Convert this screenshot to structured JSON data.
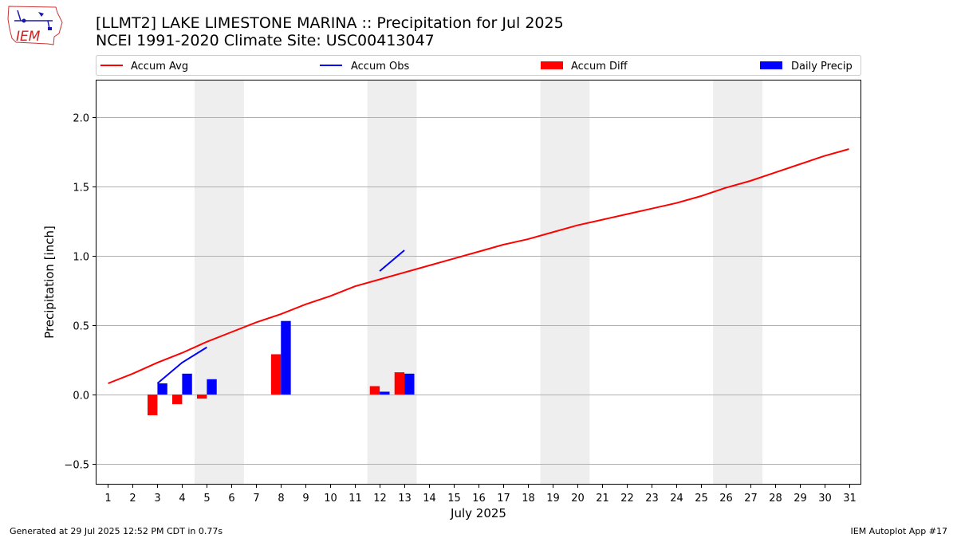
{
  "header": {
    "title_line1": "[LLMT2] LAKE LIMESTONE MARINA :: Precipitation for Jul 2025",
    "title_line2": "NCEI 1991-2020 Climate Site: USC00413047",
    "logo_text": "IEM"
  },
  "footer": {
    "generated": "Generated at 29 Jul 2025 12:52 PM CDT in 0.77s",
    "app": "IEM Autoplot App #17"
  },
  "chart_data": {
    "type": "bar",
    "xlabel": "July 2025",
    "ylabel": "Precipitation [inch]",
    "ylim": [
      -0.65,
      2.27
    ],
    "xlim": [
      0.5,
      31.5
    ],
    "yticks": [
      -0.5,
      0.0,
      0.5,
      1.0,
      1.5,
      2.0
    ],
    "ytick_labels": [
      "−0.5",
      "0.0",
      "0.5",
      "1.0",
      "1.5",
      "2.0"
    ],
    "days": [
      1,
      2,
      3,
      4,
      5,
      6,
      7,
      8,
      9,
      10,
      11,
      12,
      13,
      14,
      15,
      16,
      17,
      18,
      19,
      20,
      21,
      22,
      23,
      24,
      25,
      26,
      27,
      28,
      29,
      30,
      31
    ],
    "grid": "horizontal",
    "weekend_shading": [
      [
        5,
        6
      ],
      [
        12,
        13
      ],
      [
        19,
        20
      ],
      [
        26,
        27
      ]
    ],
    "legend_placement": "top, outside",
    "legend": [
      {
        "label": "Accum Avg",
        "kind": "line",
        "color": "#ff0000"
      },
      {
        "label": "Accum Obs",
        "kind": "line",
        "color": "#0000ff"
      },
      {
        "label": "Accum Diff",
        "kind": "bar",
        "color": "#ff0000"
      },
      {
        "label": "Daily Precip",
        "kind": "bar",
        "color": "#0000ff"
      }
    ],
    "series": [
      {
        "name": "Accum Avg",
        "kind": "line",
        "color": "#ff0000",
        "x": [
          1,
          2,
          3,
          4,
          5,
          6,
          7,
          8,
          9,
          10,
          11,
          12,
          13,
          14,
          15,
          16,
          17,
          18,
          19,
          20,
          21,
          22,
          23,
          24,
          25,
          26,
          27,
          28,
          29,
          30,
          31
        ],
        "values": [
          0.08,
          0.15,
          0.23,
          0.3,
          0.38,
          0.45,
          0.52,
          0.58,
          0.65,
          0.71,
          0.78,
          0.83,
          0.88,
          0.93,
          0.98,
          1.03,
          1.08,
          1.12,
          1.17,
          1.22,
          1.26,
          1.3,
          1.34,
          1.38,
          1.43,
          1.49,
          1.54,
          1.6,
          1.66,
          1.72,
          1.77
        ]
      },
      {
        "name": "Accum Obs",
        "kind": "line",
        "color": "#0000ff",
        "segments": [
          {
            "x": [
              3,
              4,
              5
            ],
            "values": [
              0.08,
              0.23,
              0.34
            ]
          },
          {
            "x": [
              12,
              13
            ],
            "values": [
              0.89,
              1.04
            ]
          }
        ]
      },
      {
        "name": "Accum Diff",
        "kind": "bar",
        "color": "#ff0000",
        "x": [
          3,
          4,
          5,
          8,
          12,
          13
        ],
        "values": [
          -0.15,
          -0.07,
          -0.03,
          0.29,
          0.06,
          0.16
        ]
      },
      {
        "name": "Daily Precip",
        "kind": "bar",
        "color": "#0000ff",
        "x": [
          3,
          4,
          5,
          8,
          12,
          13
        ],
        "values": [
          0.08,
          0.15,
          0.11,
          0.53,
          0.02,
          0.15
        ]
      }
    ]
  }
}
